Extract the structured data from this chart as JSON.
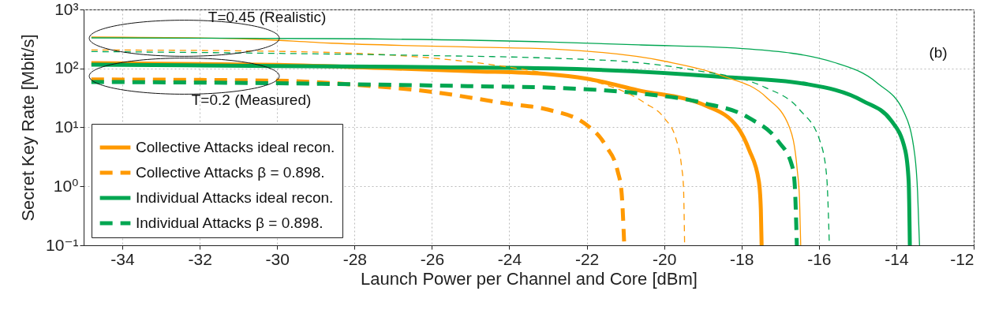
{
  "chart_data": {
    "type": "line",
    "xlabel": "Launch Power per Channel and Core [dBm]",
    "ylabel": "Secret Key Rate [Mbit/s]",
    "xlim": [
      -35,
      -12
    ],
    "xticks": [
      -34,
      -32,
      -30,
      -28,
      -26,
      -24,
      -22,
      -20,
      -18,
      -16,
      -14,
      -12
    ],
    "ylim": [
      0.1,
      1000
    ],
    "yticks": [
      {
        "value": 0.1,
        "label": "10⁻¹"
      },
      {
        "value": 1,
        "label": "10⁰"
      },
      {
        "value": 10,
        "label": "10¹"
      },
      {
        "value": 100,
        "label": "10²"
      },
      {
        "value": 1000,
        "label": "10³"
      }
    ],
    "log": "y",
    "grid": true,
    "legend": "bottom left",
    "annotations": [
      {
        "text": "T=0.45 (Realistic)",
        "x": -32.4,
        "y": 325
      },
      {
        "text": "T=0.2 (Measured)",
        "x": -32.4,
        "y": 74
      },
      "(b)"
    ],
    "series": [
      {
        "name": "Collective Attacks ideal recon.",
        "color": "#ff9900",
        "line_style": "solid",
        "x": [
          -34.8,
          -30,
          -27,
          -25,
          -23,
          -22,
          -20.7,
          -18.9,
          -18.1,
          -17.8,
          -17.55,
          -17.5,
          -17.48
        ],
        "values": [
          123,
          115,
          100,
          90,
          80,
          67,
          43,
          23,
          10,
          4.1,
          1.2,
          0.4,
          0.1
        ]
      },
      {
        "name": "Collective Attacks β = 0.898.",
        "color": "#ff9900",
        "line_style": "dashed",
        "x": [
          -34.8,
          -30,
          -28,
          -26,
          -24,
          -23,
          -22,
          -21.5,
          -21.2,
          -21.1,
          -21.03
        ],
        "values": [
          65,
          62,
          53,
          40,
          25,
          20,
          11,
          4.8,
          1.8,
          0.8,
          0.1
        ]
      },
      {
        "name": "Individual Attacks ideal recon.",
        "color": "#00a651",
        "line_style": "solid",
        "x": [
          -34.8,
          -30,
          -25.85,
          -22.9,
          -18.5,
          -16.3,
          -14.86,
          -14.13,
          -13.77,
          -13.68,
          -13.65
        ],
        "values": [
          116,
          110,
          105,
          100,
          72,
          54,
          28,
          13,
          4.1,
          1.2,
          0.1
        ]
      },
      {
        "name": "Individual Attacks β = 0.898.",
        "color": "#00a651",
        "line_style": "dashed",
        "x": [
          -34.8,
          -30,
          -25,
          -22.9,
          -20.7,
          -19,
          -17.8,
          -17.05,
          -16.7,
          -16.63,
          -16.57
        ],
        "values": [
          59,
          56,
          50,
          47,
          38,
          26,
          14.4,
          5.8,
          2.3,
          1.2,
          0.1
        ]
      },
      {
        "color": "#ff9900",
        "line_style": "solid",
        "x": [
          -34.8,
          -31,
          -28.6,
          -25,
          -22.9,
          -20,
          -18.5,
          -17.35,
          -16.76,
          -16.56,
          -16.5,
          -16.47
        ],
        "values": [
          340,
          320,
          268,
          230,
          213,
          133,
          75,
          32,
          10,
          1.9,
          0.6,
          0.1
        ]
      },
      {
        "color": "#ff9900",
        "line_style": "dashed",
        "x": [
          -34.8,
          -30,
          -26,
          -24,
          -22.9,
          -21.8,
          -20.5,
          -20,
          -19.7,
          -19.55,
          -19.5,
          -19.47
        ],
        "values": [
          206,
          195,
          150,
          105,
          80,
          60,
          26,
          14.5,
          6.6,
          2.2,
          1.0,
          0.1
        ]
      },
      {
        "color": "#00a651",
        "line_style": "solid",
        "x": [
          -34.8,
          -28.6,
          -22.9,
          -20.6,
          -17.8,
          -15.6,
          -14.5,
          -13.8,
          -13.52,
          -13.45,
          -13.4
        ],
        "values": [
          330,
          320,
          280,
          250,
          213,
          126,
          57,
          18,
          3.3,
          0.8,
          0.1
        ]
      },
      {
        "color": "#00a651",
        "line_style": "dashed",
        "x": [
          -34.8,
          -30,
          -26,
          -22.9,
          -20.6,
          -19.25,
          -17.4,
          -16.5,
          -15.97,
          -15.8,
          -15.73
        ],
        "values": [
          193,
          180,
          165,
          149,
          124,
          94,
          48,
          20,
          5.8,
          1.5,
          0.1
        ]
      }
    ]
  }
}
